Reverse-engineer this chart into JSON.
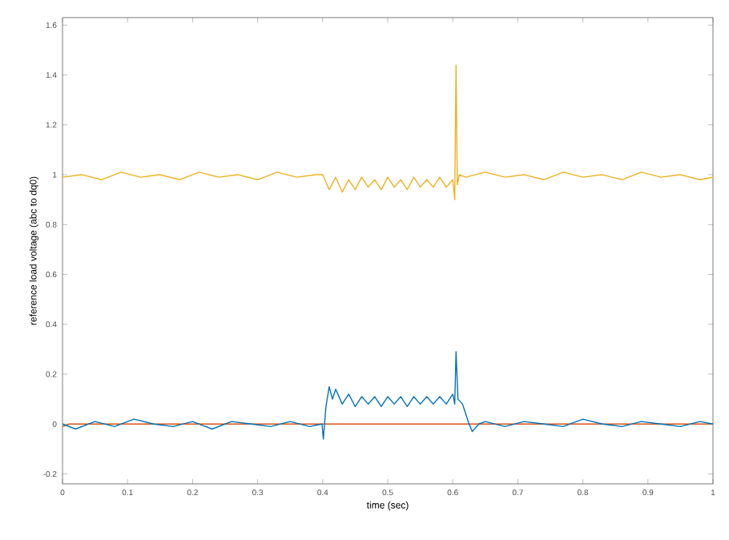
{
  "chart_data": {
    "type": "line",
    "xlabel": "time (sec)",
    "ylabel": "reference load voltage (abc to dq0)",
    "xlim": [
      0,
      1
    ],
    "ylim": [
      -0.24,
      1.63
    ],
    "xticks": [
      0,
      0.1,
      0.2,
      0.3,
      0.4,
      0.5,
      0.6,
      0.7,
      0.8,
      0.9,
      1
    ],
    "yticks": [
      -0.2,
      0,
      0.2,
      0.4,
      0.6,
      0.8,
      1,
      1.2,
      1.4,
      1.6
    ],
    "line_style": "solid",
    "marker": "none",
    "grid": false,
    "series": [
      {
        "color": "#edb120",
        "x": [
          0,
          0.03,
          0.06,
          0.09,
          0.12,
          0.15,
          0.18,
          0.21,
          0.24,
          0.27,
          0.3,
          0.33,
          0.36,
          0.39,
          0.4,
          0.41,
          0.42,
          0.43,
          0.44,
          0.45,
          0.46,
          0.47,
          0.48,
          0.49,
          0.5,
          0.51,
          0.52,
          0.53,
          0.54,
          0.55,
          0.56,
          0.57,
          0.58,
          0.59,
          0.6,
          0.603,
          0.605,
          0.607,
          0.61,
          0.62,
          0.65,
          0.68,
          0.71,
          0.74,
          0.77,
          0.8,
          0.83,
          0.86,
          0.89,
          0.92,
          0.95,
          0.98,
          1.0
        ],
        "values": [
          0.99,
          1.0,
          0.98,
          1.01,
          0.99,
          1.0,
          0.98,
          1.01,
          0.99,
          1.0,
          0.98,
          1.01,
          0.99,
          1.0,
          1.0,
          0.94,
          0.99,
          0.93,
          0.98,
          0.94,
          0.99,
          0.95,
          0.98,
          0.94,
          0.99,
          0.95,
          0.98,
          0.94,
          0.99,
          0.95,
          0.98,
          0.95,
          0.99,
          0.95,
          0.98,
          0.9,
          1.44,
          0.96,
          1.0,
          0.99,
          1.01,
          0.99,
          1.0,
          0.98,
          1.01,
          0.99,
          1.0,
          0.98,
          1.01,
          0.99,
          1.0,
          0.98,
          0.99
        ]
      },
      {
        "color": "#d95319",
        "x": [
          0,
          0.01,
          1
        ],
        "values": [
          -0.01,
          0,
          0
        ]
      },
      {
        "color": "#0072bd",
        "x": [
          0,
          0.02,
          0.05,
          0.08,
          0.11,
          0.14,
          0.17,
          0.2,
          0.23,
          0.26,
          0.29,
          0.32,
          0.35,
          0.38,
          0.399,
          0.401,
          0.405,
          0.41,
          0.415,
          0.42,
          0.43,
          0.44,
          0.45,
          0.46,
          0.47,
          0.48,
          0.49,
          0.5,
          0.51,
          0.52,
          0.53,
          0.54,
          0.55,
          0.56,
          0.57,
          0.58,
          0.59,
          0.6,
          0.603,
          0.605,
          0.608,
          0.615,
          0.62,
          0.625,
          0.63,
          0.64,
          0.65,
          0.68,
          0.71,
          0.74,
          0.77,
          0.8,
          0.83,
          0.86,
          0.89,
          0.92,
          0.95,
          0.98,
          1.0
        ],
        "values": [
          0,
          -0.02,
          0.01,
          -0.01,
          0.02,
          0,
          -0.01,
          0.01,
          -0.02,
          0.01,
          0,
          -0.01,
          0.01,
          -0.01,
          0.0,
          -0.06,
          0.07,
          0.15,
          0.1,
          0.14,
          0.08,
          0.12,
          0.07,
          0.11,
          0.08,
          0.11,
          0.07,
          0.11,
          0.08,
          0.11,
          0.07,
          0.11,
          0.08,
          0.11,
          0.08,
          0.11,
          0.08,
          0.12,
          0.08,
          0.29,
          0.1,
          0.08,
          0.04,
          0.0,
          -0.03,
          0.0,
          0.01,
          -0.01,
          0.01,
          0,
          -0.01,
          0.02,
          0,
          -0.01,
          0.01,
          0,
          -0.01,
          0.01,
          0
        ]
      }
    ]
  }
}
